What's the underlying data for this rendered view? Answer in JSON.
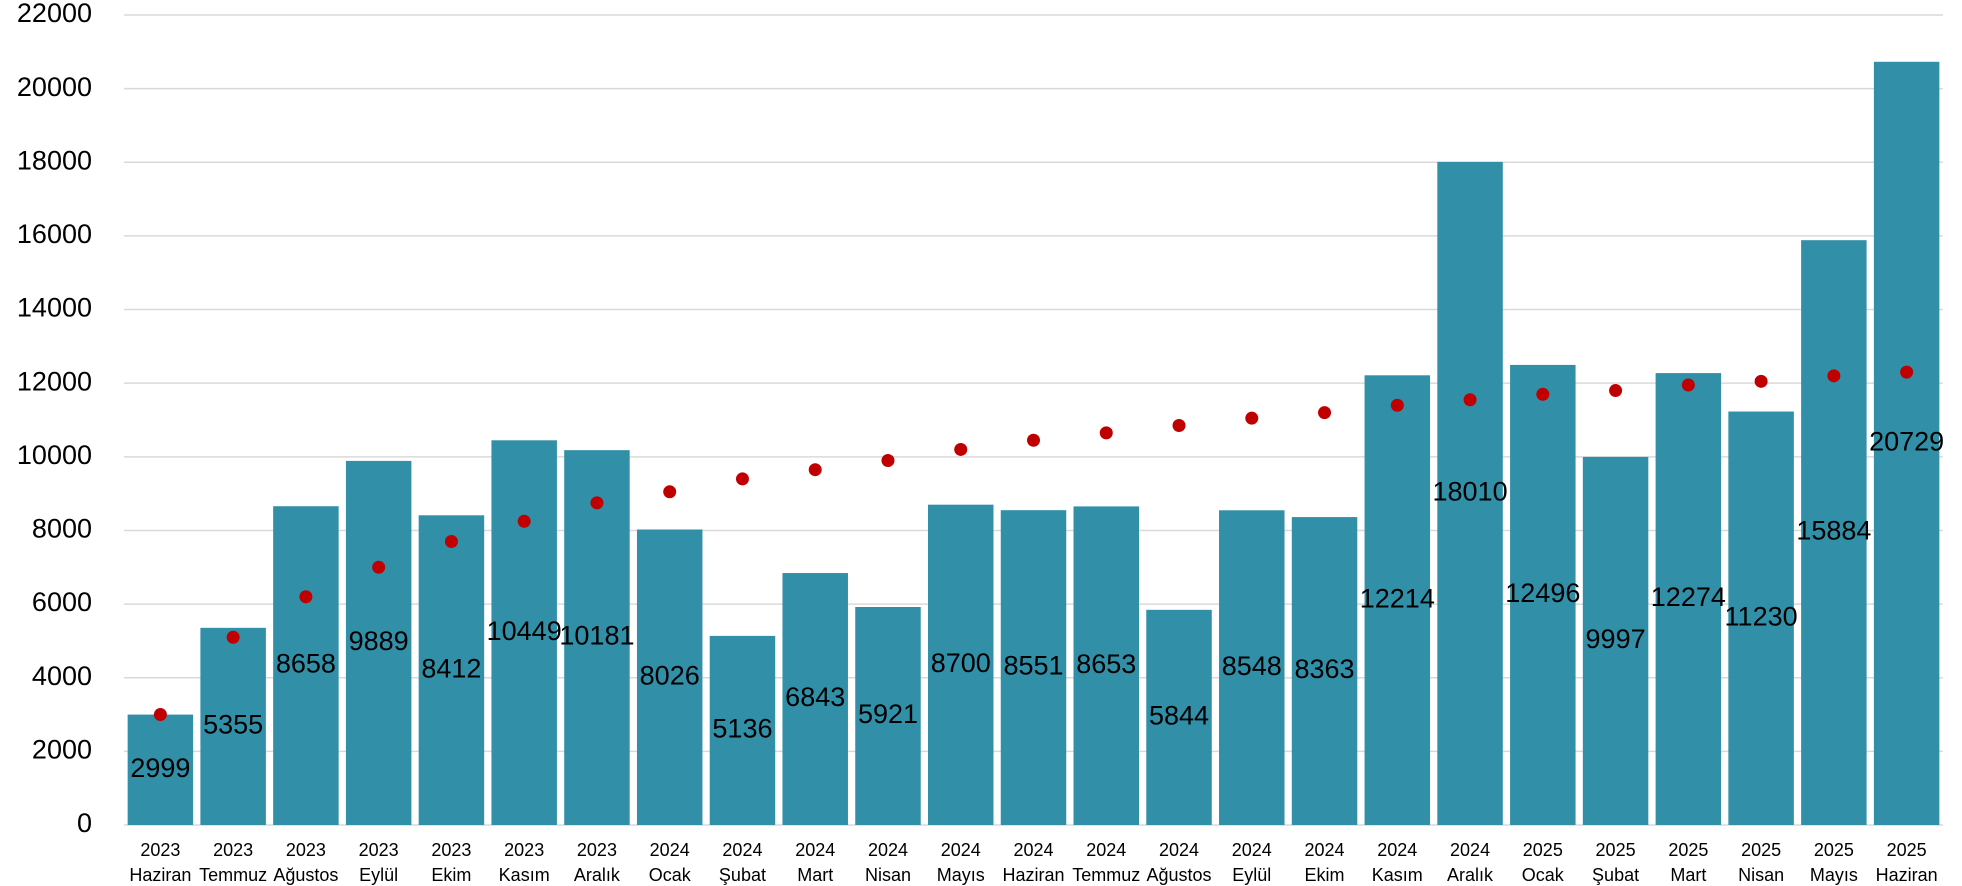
{
  "chart_data": {
    "type": "bar",
    "categories": [
      [
        "2023",
        "Haziran"
      ],
      [
        "2023",
        "Temmuz"
      ],
      [
        "2023",
        "Ağustos"
      ],
      [
        "2023",
        "Eylül"
      ],
      [
        "2023",
        "Ekim"
      ],
      [
        "2023",
        "Kasım"
      ],
      [
        "2023",
        "Aralık"
      ],
      [
        "2024",
        "Ocak"
      ],
      [
        "2024",
        "Şubat"
      ],
      [
        "2024",
        "Mart"
      ],
      [
        "2024",
        "Nisan"
      ],
      [
        "2024",
        "Mayıs"
      ],
      [
        "2024",
        "Haziran"
      ],
      [
        "2024",
        "Temmuz"
      ],
      [
        "2024",
        "Ağustos"
      ],
      [
        "2024",
        "Eylül"
      ],
      [
        "2024",
        "Ekim"
      ],
      [
        "2024",
        "Kasım"
      ],
      [
        "2024",
        "Aralık"
      ],
      [
        "2025",
        "Ocak"
      ],
      [
        "2025",
        "Şubat"
      ],
      [
        "2025",
        "Mart"
      ],
      [
        "2025",
        "Nisan"
      ],
      [
        "2025",
        "Mayıs"
      ],
      [
        "2025",
        "Haziran"
      ]
    ],
    "values": [
      2999,
      5355,
      8658,
      9889,
      8412,
      10449,
      10181,
      8026,
      5136,
      6843,
      5921,
      8700,
      8551,
      8653,
      5844,
      8548,
      8363,
      12214,
      18010,
      12496,
      9997,
      12274,
      11230,
      15884,
      20729
    ],
    "color": "#318fa8",
    "trend": {
      "color": "#c00000",
      "values": [
        3000,
        5100,
        6200,
        7000,
        7700,
        8250,
        8750,
        9050,
        9400,
        9650,
        9900,
        10200,
        10450,
        10650,
        10850,
        11050,
        11200,
        11400,
        11550,
        11700,
        11800,
        11950,
        12050,
        12200,
        12300
      ]
    },
    "ylim": [
      0,
      22000
    ],
    "yticks": [
      0,
      2000,
      4000,
      6000,
      8000,
      10000,
      12000,
      14000,
      16000,
      18000,
      20000,
      22000
    ],
    "grid": true
  }
}
